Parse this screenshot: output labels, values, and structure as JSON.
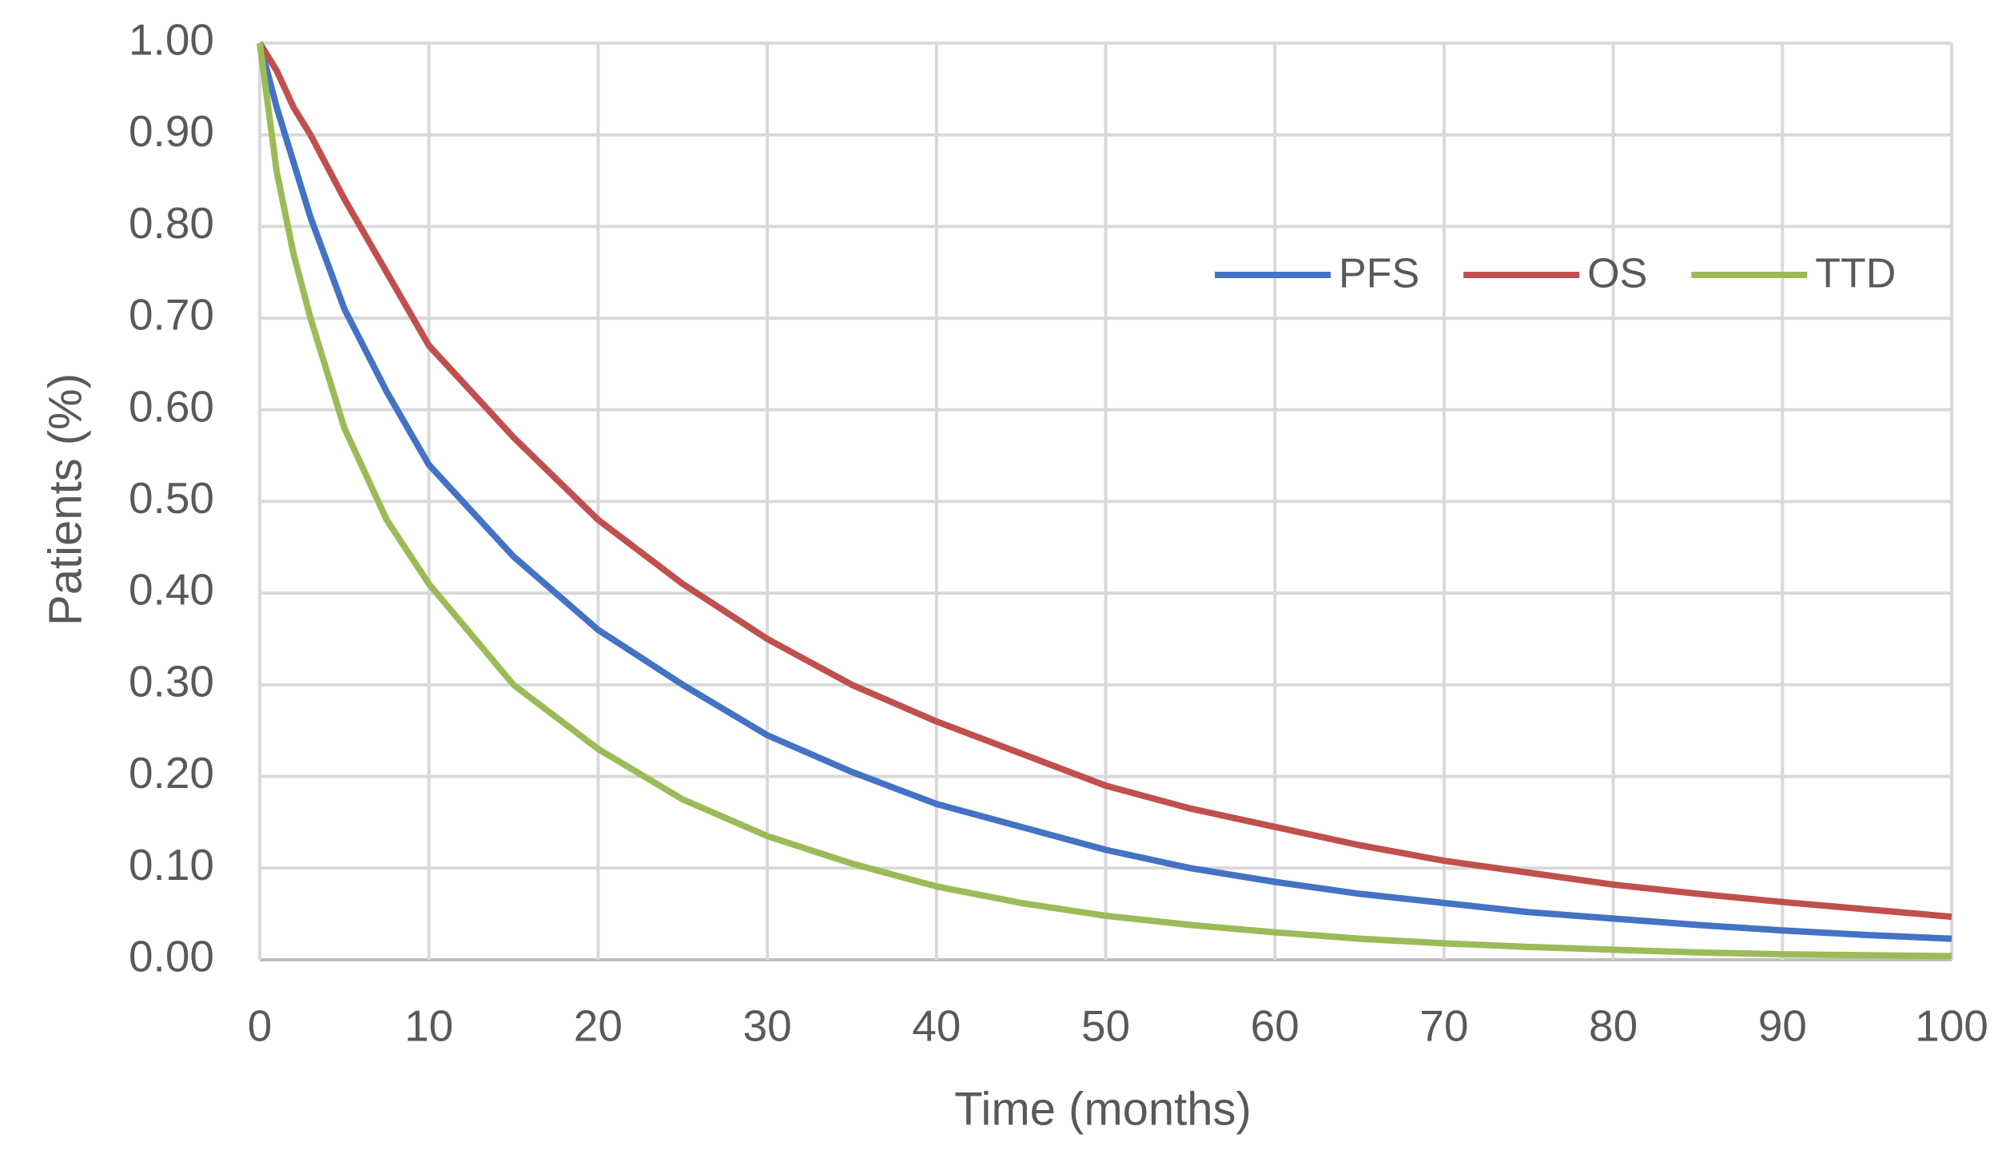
{
  "chart_data": {
    "type": "line",
    "x_label": "Time (months)",
    "y_label": "Patients (%)",
    "x": [
      0,
      1,
      2,
      3,
      5,
      7.5,
      10,
      15,
      20,
      25,
      30,
      35,
      40,
      45,
      50,
      55,
      60,
      65,
      70,
      75,
      80,
      85,
      90,
      95,
      100
    ],
    "series": [
      {
        "name": "PFS",
        "color": "#4472c4",
        "values": [
          1,
          0.93,
          0.87,
          0.81,
          0.71,
          0.62,
          0.54,
          0.44,
          0.36,
          0.3,
          0.245,
          0.205,
          0.17,
          0.145,
          0.12,
          0.1,
          0.085,
          0.072,
          0.062,
          0.052,
          0.045,
          0.038,
          0.032,
          0.027,
          0.023
        ]
      },
      {
        "name": "OS",
        "color": "#c0504d",
        "values": [
          1,
          0.97,
          0.93,
          0.9,
          0.83,
          0.75,
          0.67,
          0.57,
          0.48,
          0.41,
          0.35,
          0.3,
          0.26,
          0.225,
          0.19,
          0.165,
          0.145,
          0.125,
          0.108,
          0.095,
          0.082,
          0.072,
          0.063,
          0.055,
          0.047
        ]
      },
      {
        "name": "TTD",
        "color": "#9bbb59",
        "values": [
          1,
          0.86,
          0.77,
          0.7,
          0.58,
          0.48,
          0.41,
          0.3,
          0.23,
          0.175,
          0.135,
          0.105,
          0.08,
          0.062,
          0.048,
          0.038,
          0.03,
          0.023,
          0.018,
          0.014,
          0.011,
          0.008,
          0.006,
          0.005,
          0.004
        ]
      }
    ],
    "xlim": [
      0,
      100
    ],
    "xticks": [
      0,
      10,
      20,
      30,
      40,
      50,
      60,
      70,
      80,
      90,
      100
    ],
    "ylim": [
      0,
      1
    ],
    "yticks": [
      {
        "value": 0,
        "label": "0.00"
      },
      {
        "value": 0.1,
        "label": "0.10"
      },
      {
        "value": 0.2,
        "label": "0.20"
      },
      {
        "value": 0.3,
        "label": "0.30"
      },
      {
        "value": 0.4,
        "label": "0.40"
      },
      {
        "value": 0.5,
        "label": "0.50"
      },
      {
        "value": 0.6,
        "label": "0.60"
      },
      {
        "value": 0.7,
        "label": "0.70"
      },
      {
        "value": 0.8,
        "label": "0.80"
      },
      {
        "value": 0.9,
        "label": "0.90"
      },
      {
        "value": 1,
        "label": "1.00"
      }
    ],
    "grid": true,
    "legend": "top-right"
  }
}
